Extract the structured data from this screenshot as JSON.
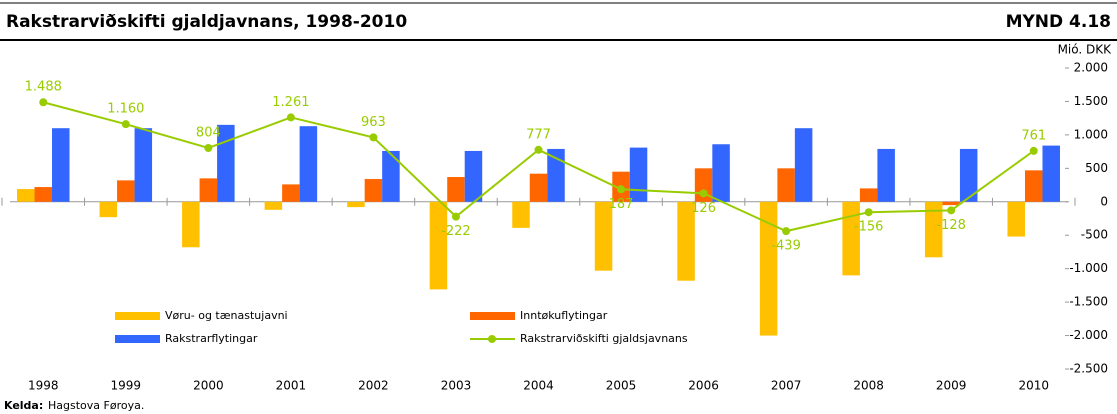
{
  "chart_data": {
    "type": "bar_line",
    "title": "Rakstrarviðskifti gjaldjavnans, 1998-2010",
    "figure_label": "MYND 4.18",
    "y_unit": "Mió. DKK",
    "categories": [
      "1998",
      "1999",
      "2000",
      "2001",
      "2002",
      "2003",
      "2004",
      "2005",
      "2006",
      "2007",
      "2008",
      "2009",
      "2010"
    ],
    "series": [
      {
        "name": "Vøru- og tænastujavni",
        "color": "#ffc000",
        "kind": "bar",
        "values": [
          190,
          -230,
          -680,
          -120,
          -80,
          -1310,
          -390,
          -1030,
          -1180,
          -2000,
          -1100,
          -830,
          -520
        ]
      },
      {
        "name": "Inntøkuflytingar",
        "color": "#ff6600",
        "kind": "bar",
        "values": [
          220,
          320,
          350,
          260,
          340,
          370,
          420,
          450,
          500,
          500,
          200,
          -50,
          470
        ]
      },
      {
        "name": "Rakstrarflytingar",
        "color": "#3366ff",
        "kind": "bar",
        "values": [
          1100,
          1100,
          1150,
          1130,
          760,
          760,
          790,
          810,
          860,
          1100,
          790,
          790,
          840
        ]
      },
      {
        "name": "Rakstrarviðskifti gjaldsjavnans",
        "color": "#99cc00",
        "kind": "line",
        "values": [
          1488,
          1160,
          804,
          1261,
          963,
          -222,
          777,
          187,
          126,
          -439,
          -156,
          -128,
          761
        ],
        "value_labels": [
          "1.488",
          "1.160",
          "804",
          "1.261",
          "963",
          "-222",
          "777",
          "187",
          "126",
          "-439",
          "-156",
          "-128",
          "761"
        ]
      }
    ],
    "ylim": [
      -2500,
      2000
    ],
    "yticks": [
      {
        "value": -2500,
        "label": "-2.500"
      },
      {
        "value": -2000,
        "label": "-2.000"
      },
      {
        "value": -1500,
        "label": "-1.500"
      },
      {
        "value": -1000,
        "label": "-1.000"
      },
      -500,
      0,
      500,
      {
        "value": 1000,
        "label": "1.000"
      },
      {
        "value": 1500,
        "label": "1.500"
      },
      {
        "value": 2000,
        "label": "2.000"
      }
    ],
    "source_label": "Kelda:",
    "source": "Hagstova Føroya."
  }
}
